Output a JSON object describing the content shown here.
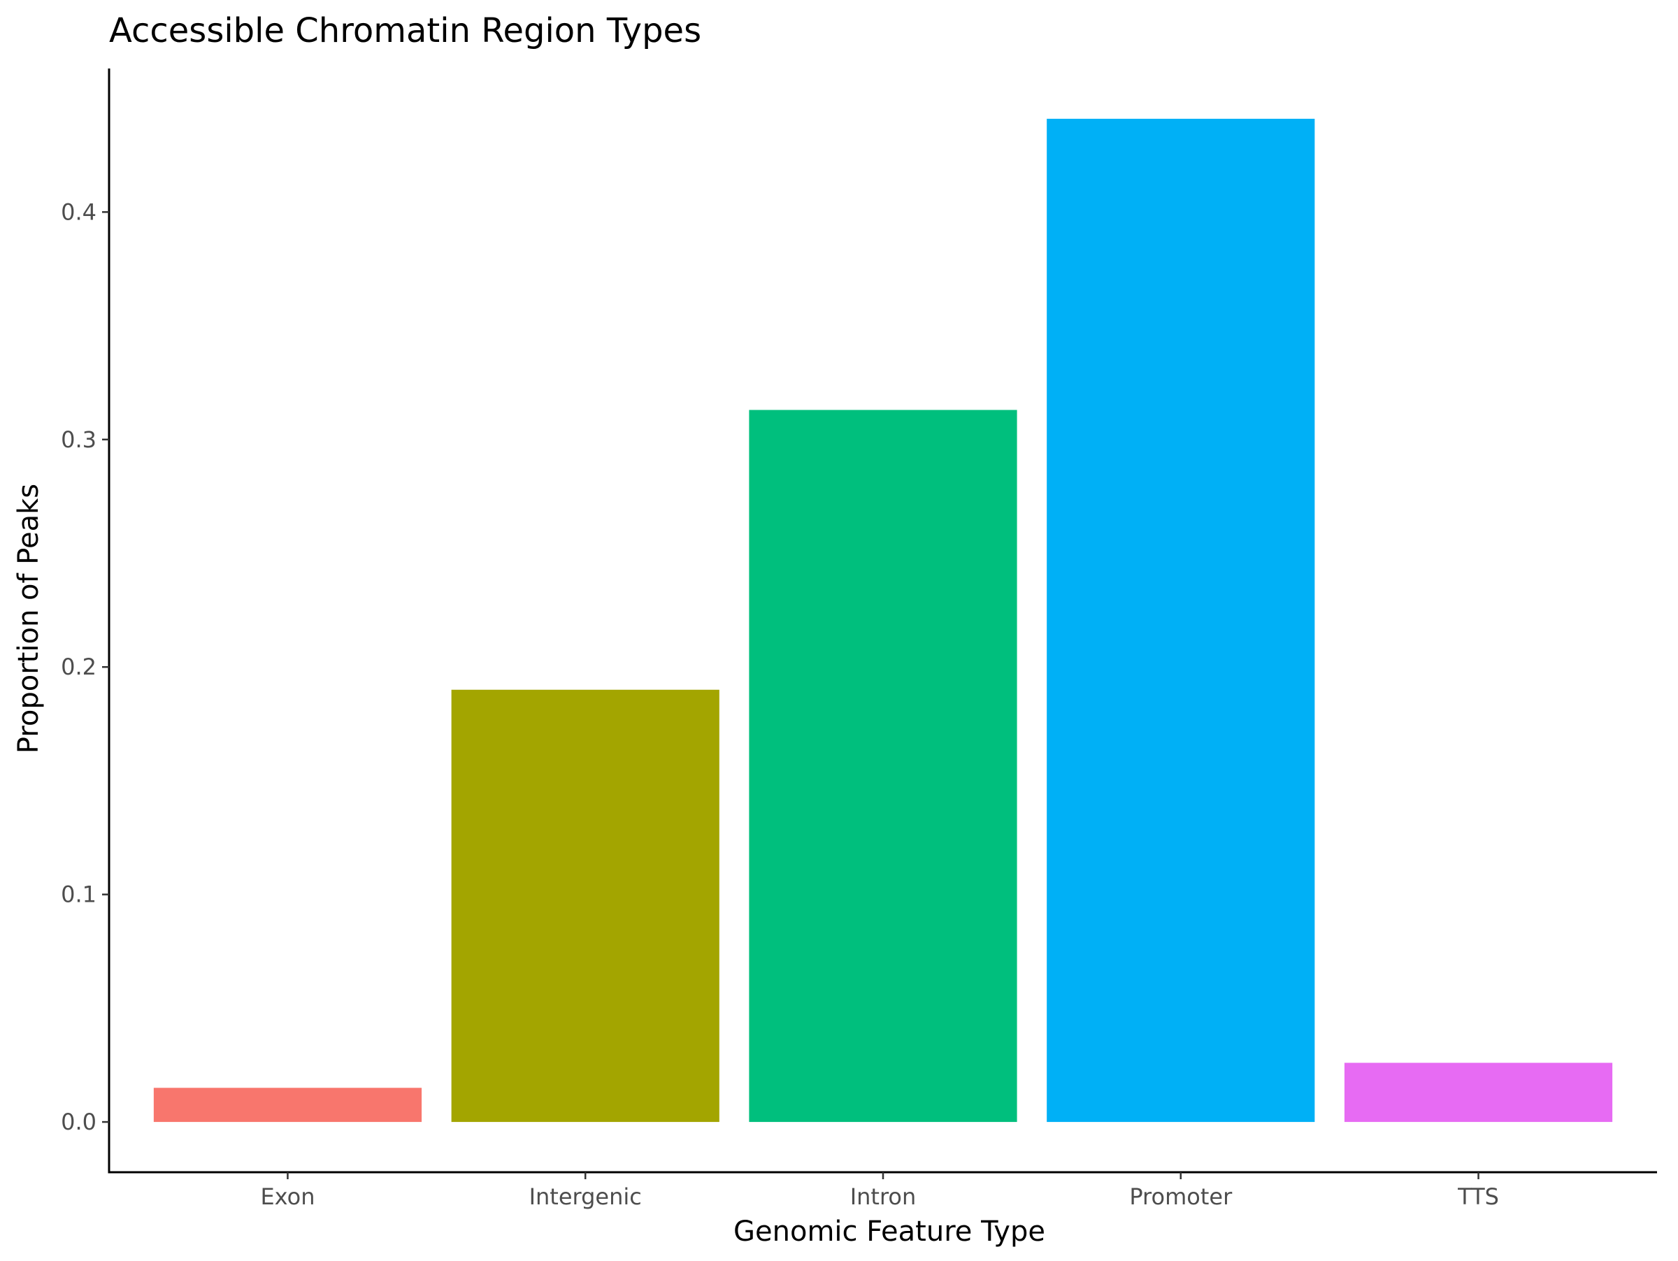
{
  "chart_data": {
    "type": "bar",
    "title": "Accessible Chromatin Region Types",
    "xlabel": "Genomic Feature Type",
    "ylabel": "Proportion of Peaks",
    "categories": [
      "Exon",
      "Intergenic",
      "Intron",
      "Promoter",
      "TTS"
    ],
    "values": [
      0.015,
      0.19,
      0.313,
      0.441,
      0.026
    ],
    "colors": [
      "#F8766D",
      "#A3A500",
      "#00BF7D",
      "#00B0F6",
      "#E76BF3"
    ],
    "yticks": [
      0.0,
      0.1,
      0.2,
      0.3,
      0.4
    ],
    "ytick_labels": [
      "0.0",
      "0.1",
      "0.2",
      "0.3",
      "0.4"
    ],
    "ylim": [
      -0.0221,
      0.4631
    ],
    "grid": false,
    "legend": "none"
  }
}
